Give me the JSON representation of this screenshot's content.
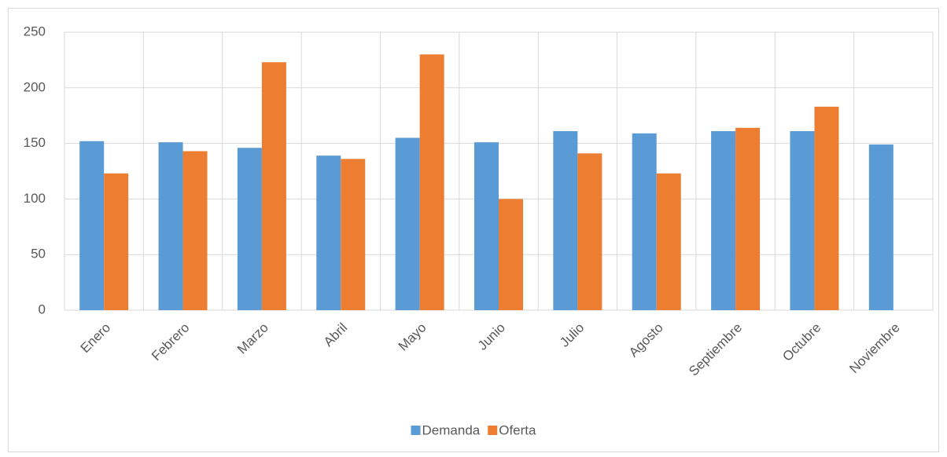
{
  "chart_data": {
    "type": "bar",
    "categories": [
      "Enero",
      "Febrero",
      "Marzo",
      "Abril",
      "Mayo",
      "Junio",
      "Julio",
      "Agosto",
      "Septiembre",
      "Octubre",
      "Noviembre"
    ],
    "series": [
      {
        "name": "Demanda",
        "color": "#5b9bd5",
        "values": [
          152,
          151,
          146,
          139,
          155,
          151,
          161,
          159,
          161,
          161,
          149
        ]
      },
      {
        "name": "Oferta",
        "color": "#ed7d31",
        "values": [
          123,
          143,
          223,
          136,
          230,
          100,
          141,
          123,
          164,
          183,
          null
        ]
      }
    ],
    "ylim": [
      0,
      250
    ],
    "yticks": [
      0,
      50,
      100,
      150,
      200,
      250
    ],
    "grid": true,
    "legend": "bottom"
  }
}
